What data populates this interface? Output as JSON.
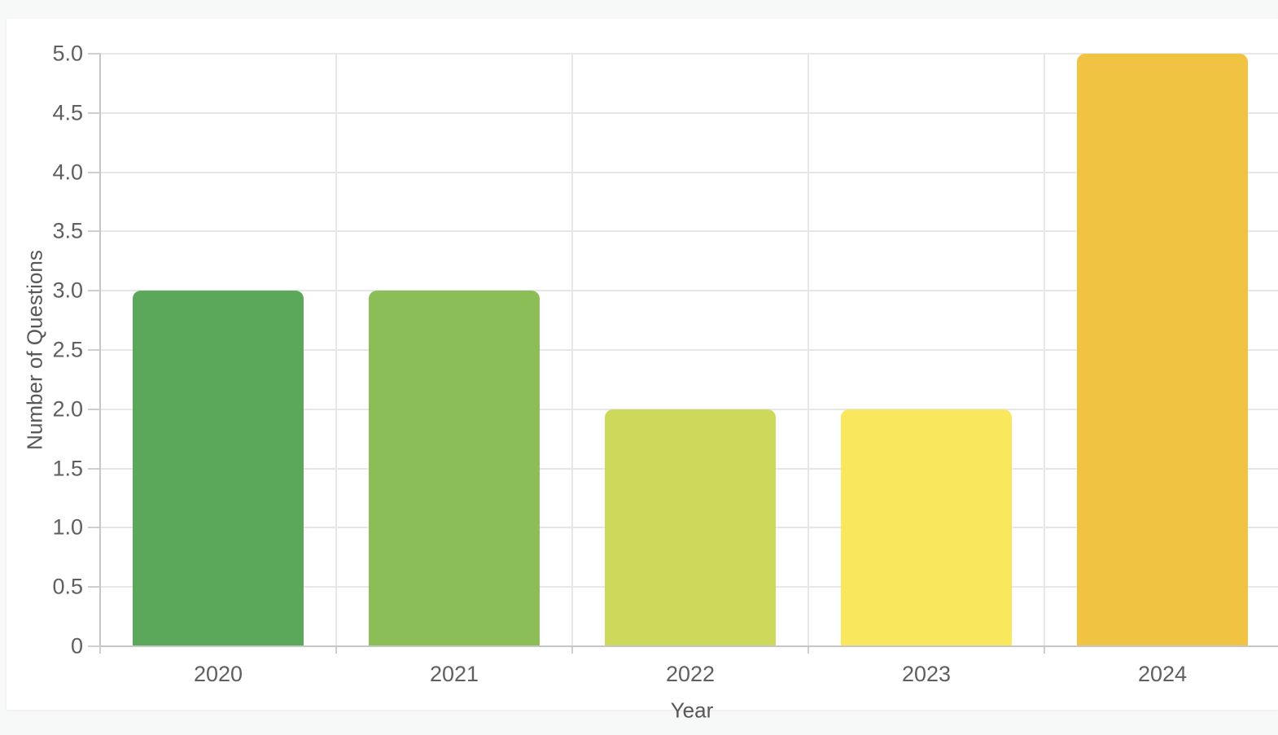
{
  "page": {
    "background_color": "#f7f8f8",
    "card_background_color": "#ffffff"
  },
  "chart_data": {
    "type": "bar",
    "title": "",
    "categories": [
      "2020",
      "2021",
      "2022",
      "2023",
      "2024"
    ],
    "values": [
      3,
      3,
      2,
      2,
      5
    ],
    "xlabel": "Year",
    "ylabel": "Number of Questions",
    "ylim": [
      0,
      5
    ],
    "ytick_step": 0.5,
    "ytick_labels": [
      "5.0",
      "4.5",
      "4.0",
      "3.5",
      "3.0",
      "2.5",
      "2.0",
      "1.5",
      "1.0",
      "0.5",
      "0"
    ],
    "bar_colors": [
      "#5ca85a",
      "#8cbe58",
      "#ced85a",
      "#f9e75e",
      "#f1c343"
    ],
    "grid": true,
    "legend_position": "none",
    "colors": {
      "gridline": "#e7e7e7",
      "axis_line": "#c6c6c6",
      "tick_mark": "#cfcfcf",
      "tick_text": "#5f5f5f",
      "axis_title_text": "#585858"
    }
  }
}
